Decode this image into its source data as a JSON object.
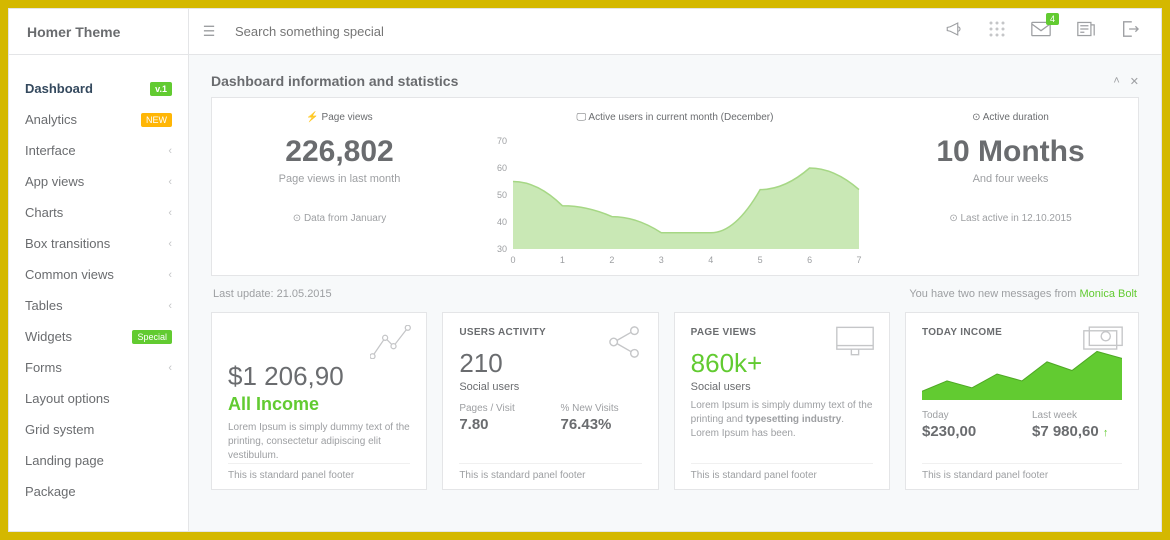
{
  "brand": "Homer Theme",
  "search_placeholder": "Search something special",
  "topbar": {
    "badge_count": "4"
  },
  "sidebar": {
    "items": [
      {
        "label": "Dashboard",
        "badge": "v.1",
        "badge_class": "bg-green",
        "active": true
      },
      {
        "label": "Analytics",
        "badge": "NEW",
        "badge_class": "bg-orange"
      },
      {
        "label": "Interface",
        "chev": true
      },
      {
        "label": "App views",
        "chev": true
      },
      {
        "label": "Charts",
        "chev": true
      },
      {
        "label": "Box transitions",
        "chev": true
      },
      {
        "label": "Common views",
        "chev": true
      },
      {
        "label": "Tables",
        "chev": true
      },
      {
        "label": "Widgets",
        "badge": "Special",
        "badge_class": "bg-green",
        "chev": true
      },
      {
        "label": "Forms",
        "chev": true
      },
      {
        "label": "Layout options"
      },
      {
        "label": "Grid system"
      },
      {
        "label": "Landing page"
      },
      {
        "label": "Package"
      }
    ]
  },
  "page_title": "Dashboard information and statistics",
  "hero": {
    "left": {
      "label": "⚡ Page views",
      "value": "226,802",
      "sub": "Page views in last month",
      "foot": "⊙ Data from January"
    },
    "mid": {
      "label": "🖵 Active users in current month (December)",
      "chart": {
        "type": "area",
        "x": [
          0,
          1,
          2,
          3,
          4,
          5,
          6,
          7
        ],
        "y": [
          55,
          46,
          42,
          36,
          36,
          52,
          60,
          52
        ],
        "ylim": [
          30,
          70
        ],
        "ytick_step": 10,
        "fill": "#c9e8b5",
        "stroke": "#a6d785",
        "axis_color": "#9d9fa2",
        "bg": "#ffffff"
      }
    },
    "right": {
      "label": "⊙ Active duration",
      "value": "10 Months",
      "sub": "And four weeks",
      "foot": "⊙ Last active in 12.10.2015"
    }
  },
  "meta": {
    "left": "Last update: 21.05.2015",
    "right_prefix": "You have two new messages from ",
    "right_link": "Monica Bolt"
  },
  "cards": {
    "income": {
      "icon": "analytics-line",
      "value": "$1 206,90",
      "title": "All Income",
      "desc": "Lorem Ipsum is simply dummy text of the printing, consectetur adipiscing elit vestibulum.",
      "footer": "This is standard panel footer"
    },
    "users": {
      "heading": "USERS ACTIVITY",
      "icon": "share",
      "value": "210",
      "sub": "Social users",
      "col1_label": "Pages / Visit",
      "col1_val": "7.80",
      "col2_label": "% New Visits",
      "col2_val": "76.43%",
      "footer": "This is standard panel footer"
    },
    "pageviews": {
      "heading": "PAGE VIEWS",
      "icon": "monitor",
      "value": "860k+",
      "sub": "Social users",
      "desc_pre": "Lorem Ipsum is simply dummy text of the printing and ",
      "desc_bold": "typesetting industry",
      "desc_post": ". Lorem Ipsum has been.",
      "footer": "This is standard panel footer"
    },
    "today": {
      "heading": "TODAY INCOME",
      "icon": "cash",
      "chart": {
        "type": "area",
        "values": [
          10,
          22,
          14,
          30,
          22,
          44,
          34,
          56,
          48
        ],
        "min": 0,
        "max": 60,
        "fill": "#62cb31",
        "stroke": "#4ea824"
      },
      "col1_label": "Today",
      "col1_val": "$230,00",
      "col2_label": "Last week",
      "col2_val": "$7 980,60",
      "footer": "This is standard panel footer"
    }
  }
}
